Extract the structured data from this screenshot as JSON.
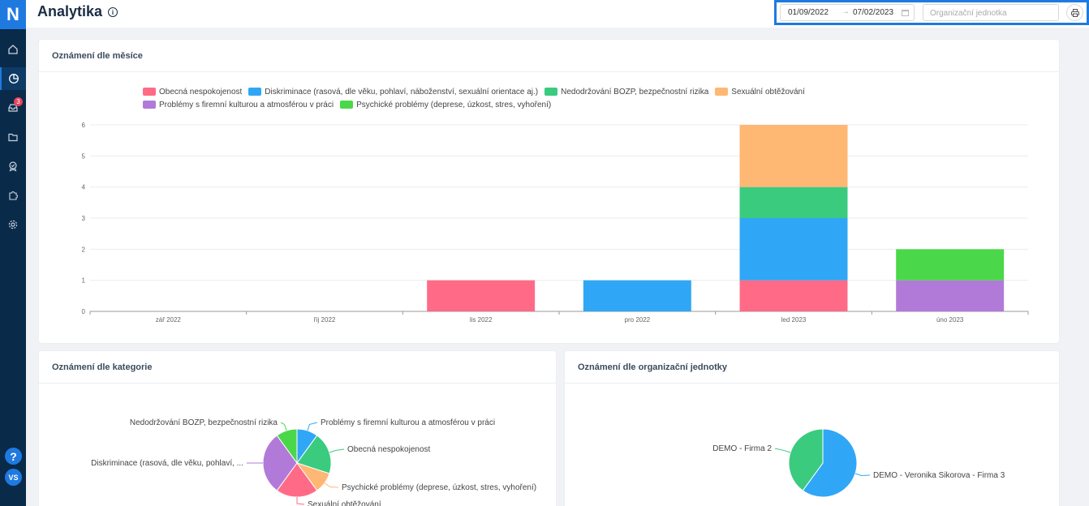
{
  "app": {
    "logo_letter": "N",
    "title": "Analytika"
  },
  "sidebar": {
    "items": [
      {
        "name": "home",
        "icon": "home-icon"
      },
      {
        "name": "analytics",
        "icon": "pie-chart-icon",
        "active": true
      },
      {
        "name": "inbox",
        "icon": "inbox-icon",
        "badge": "3"
      },
      {
        "name": "folder",
        "icon": "folder-icon"
      },
      {
        "name": "cases",
        "icon": "badge-check-icon"
      },
      {
        "name": "integrations",
        "icon": "puzzle-icon"
      },
      {
        "name": "settings",
        "icon": "gear-icon"
      }
    ],
    "help_label": "?",
    "user_initials": "VS"
  },
  "filters": {
    "date_from": "01/09/2022",
    "date_to": "07/02/2023",
    "arrow": "→",
    "org_placeholder": "Organizační jednotka"
  },
  "colors": {
    "pink": "#ff6b87",
    "blue": "#30a7f6",
    "teal": "#3acb7f",
    "orange": "#ffb774",
    "purple": "#b27ad8",
    "green": "#4ad84a"
  },
  "charts": {
    "month_title": "Oznámení dle měsíce",
    "category_title": "Oznámení dle kategorie",
    "org_title": "Oznámení dle organizační jednotky"
  },
  "chart_data": [
    {
      "type": "bar",
      "stacked": true,
      "title": "Oznámení dle měsíce",
      "categories": [
        "zář 2022",
        "říj 2022",
        "lis 2022",
        "pro 2022",
        "led 2023",
        "úno 2023"
      ],
      "ylim": [
        0,
        6
      ],
      "yticks": [
        0,
        1,
        2,
        3,
        4,
        5,
        6
      ],
      "grid": true,
      "legend": "top",
      "series": [
        {
          "name": "Obecná nespokojenost",
          "color": "#ff6b87",
          "values": [
            0,
            0,
            1,
            0,
            1,
            0
          ]
        },
        {
          "name": "Diskriminace (rasová, dle věku, pohlaví, náboženství, sexuální orientace aj.)",
          "color": "#30a7f6",
          "values": [
            0,
            0,
            0,
            1,
            2,
            0
          ]
        },
        {
          "name": "Nedodržování BOZP, bezpečnostní rizika",
          "color": "#3acb7f",
          "values": [
            0,
            0,
            0,
            0,
            1,
            0
          ]
        },
        {
          "name": "Sexuální obtěžování",
          "color": "#ffb774",
          "values": [
            0,
            0,
            0,
            0,
            2,
            0
          ]
        },
        {
          "name": "Problémy s firemní kulturou a atmosférou v práci",
          "color": "#b27ad8",
          "values": [
            0,
            0,
            0,
            0,
            0,
            1
          ]
        },
        {
          "name": "Psychické problémy (deprese, úzkost, stres, vyhoření)",
          "color": "#4ad84a",
          "values": [
            0,
            0,
            0,
            0,
            0,
            1
          ]
        }
      ]
    },
    {
      "type": "pie",
      "title": "Oznámení dle kategorie",
      "slices": [
        {
          "label": "Problémy s firemní kulturou a atmosférou v práci",
          "value": 1,
          "color": "#30a7f6"
        },
        {
          "label": "Obecná nespokojenost",
          "value": 2,
          "color": "#3acb7f"
        },
        {
          "label": "Psychické problémy (deprese, úzkost, stres, vyhoření)",
          "value": 1,
          "color": "#ffb774"
        },
        {
          "label": "Sexuální obtěžování",
          "value": 2,
          "color": "#ff6b87"
        },
        {
          "label": "Diskriminace (rasová, dle věku, pohlaví, ...",
          "value": 3,
          "color": "#b27ad8"
        },
        {
          "label": "Nedodržování BOZP, bezpečnostní rizika",
          "value": 1,
          "color": "#4ad84a"
        }
      ]
    },
    {
      "type": "pie",
      "title": "Oznámení dle organizační jednotky",
      "slices": [
        {
          "label": "DEMO - Veronika Sikorova - Firma 3",
          "value": 6,
          "color": "#30a7f6"
        },
        {
          "label": "DEMO - Firma 2",
          "value": 4,
          "color": "#3acb7f"
        }
      ]
    }
  ]
}
